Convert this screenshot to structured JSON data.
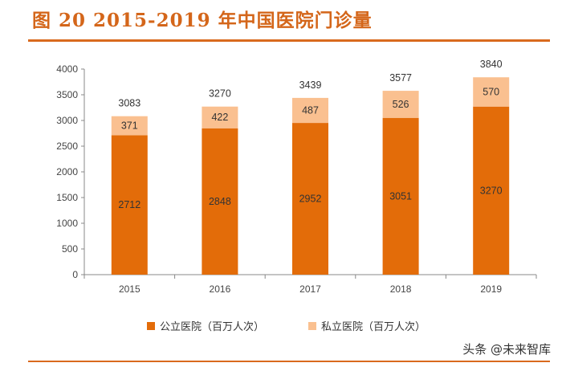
{
  "header": {
    "title": "图 20 2015-2019 年中国医院门诊量"
  },
  "watermark": {
    "text": "头条 @未来智库"
  },
  "chart_data": {
    "type": "bar",
    "stacked": true,
    "title": "图 20 2015-2019 年中国医院门诊量",
    "categories": [
      "2015",
      "2016",
      "2017",
      "2018",
      "2019"
    ],
    "series": [
      {
        "name": "公立医院（百万人次）",
        "values": [
          2712,
          2848,
          2952,
          3051,
          3270
        ],
        "color": "#e36c09"
      },
      {
        "name": "私立医院（百万人次）",
        "values": [
          371,
          422,
          487,
          526,
          570
        ],
        "color": "#fac090"
      }
    ],
    "totals": [
      "3083",
      "3270",
      "3439",
      "3577",
      "3840"
    ],
    "ylim": [
      0,
      4000
    ],
    "yticks": [
      "0",
      "500",
      "1000",
      "1500",
      "2000",
      "2500",
      "3000",
      "3500",
      "4000"
    ],
    "grid": false,
    "legend": "bottom",
    "xlabel": "",
    "ylabel": ""
  }
}
